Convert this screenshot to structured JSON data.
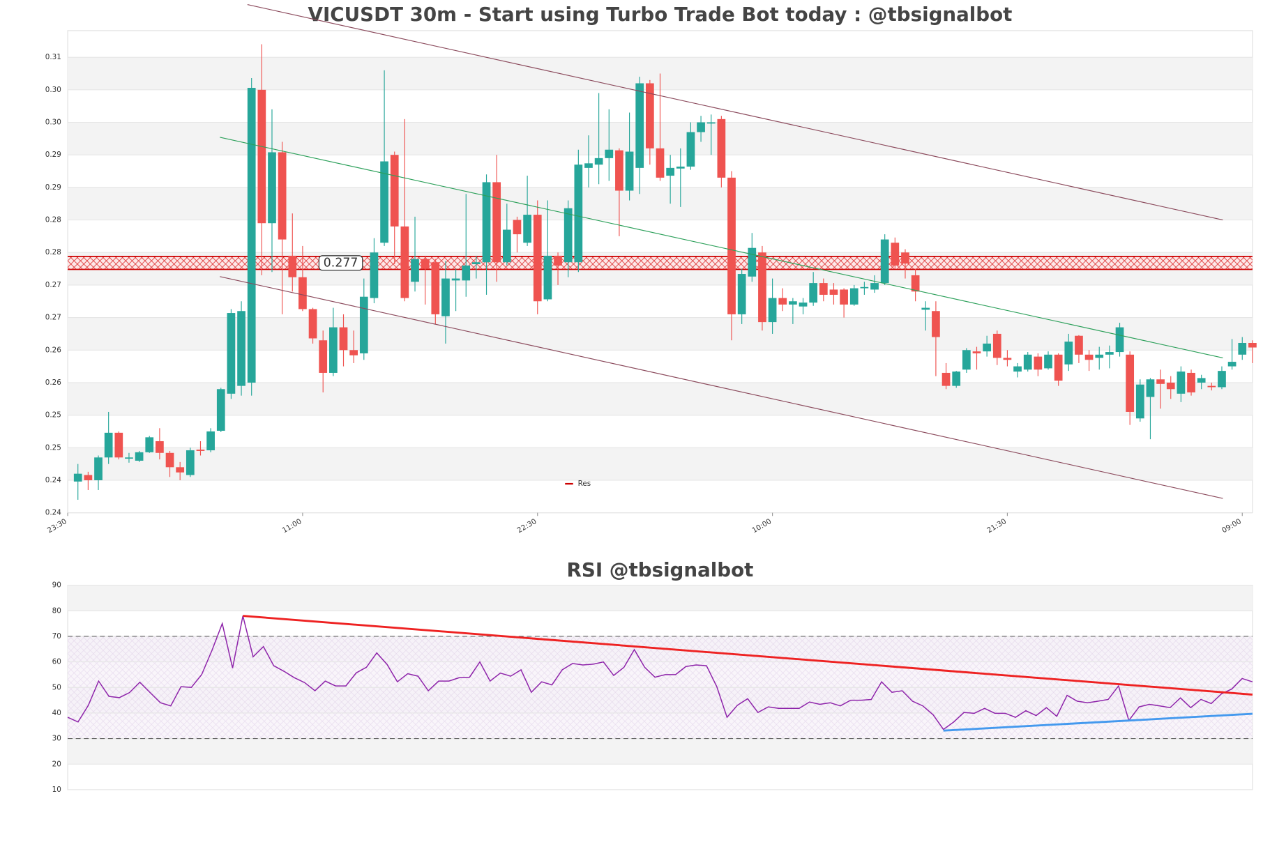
{
  "chart_data": [
    {
      "type": "candlestick",
      "title": "VICUSDT 30m - Start using Turbo Trade Bot today : @tbsignalbot",
      "open": [
        0.2448,
        0.2458,
        0.245,
        0.2485,
        0.2523,
        0.2485,
        0.248,
        0.2493,
        0.251,
        0.2492,
        0.247,
        0.2458,
        0.2497,
        0.2496,
        0.2526,
        0.2583,
        0.2595,
        0.26,
        0.305,
        0.2845,
        0.2954,
        0.2795,
        0.2762,
        0.2713,
        0.2665,
        0.2615,
        0.2685,
        0.265,
        0.2645,
        0.273,
        0.2815,
        0.295,
        0.284,
        0.2755,
        0.279,
        0.2785,
        0.2702,
        0.2757,
        0.2757,
        0.2782,
        0.2785,
        0.2908,
        0.2785,
        0.285,
        0.2815,
        0.2858,
        0.2728,
        0.2795,
        0.2785,
        0.2785,
        0.293,
        0.2935,
        0.2945,
        0.2957,
        0.2895,
        0.293,
        0.306,
        0.296,
        0.2918,
        0.2929,
        0.2932,
        0.2985,
        0.3,
        0.3005,
        0.2915,
        0.2705,
        0.2763,
        0.28,
        0.2693,
        0.273,
        0.272,
        0.2717,
        0.2723,
        0.2753,
        0.2743,
        0.2743,
        0.272,
        0.2745,
        0.2743,
        0.2753,
        0.2815,
        0.28,
        0.2765,
        0.2712,
        0.271,
        0.2615,
        0.2595,
        0.262,
        0.2648,
        0.2648,
        0.2675,
        0.2638,
        0.2617,
        0.262,
        0.264,
        0.2622,
        0.2643,
        0.2628,
        0.2672,
        0.2643,
        0.2638,
        0.2643,
        0.2647,
        0.2643,
        0.2545,
        0.2578,
        0.2605,
        0.26,
        0.2583,
        0.2615,
        0.26,
        0.2595,
        0.2593,
        0.2625,
        0.2643,
        0.2661
      ],
      "high": [
        0.2475,
        0.2463,
        0.2488,
        0.2555,
        0.2525,
        0.2492,
        0.2495,
        0.2518,
        0.253,
        0.2495,
        0.2478,
        0.25,
        0.251,
        0.253,
        0.2592,
        0.2713,
        0.2725,
        0.3068,
        0.312,
        0.302,
        0.297,
        0.286,
        0.281,
        0.2715,
        0.268,
        0.2715,
        0.2705,
        0.268,
        0.276,
        0.2822,
        0.308,
        0.2955,
        0.3005,
        0.2855,
        0.2795,
        0.279,
        0.2787,
        0.2775,
        0.289,
        0.2795,
        0.292,
        0.295,
        0.2875,
        0.2855,
        0.2918,
        0.288,
        0.288,
        0.28,
        0.288,
        0.2958,
        0.298,
        0.3045,
        0.302,
        0.296,
        0.3015,
        0.307,
        0.3065,
        0.3075,
        0.295,
        0.296,
        0.3,
        0.301,
        0.3012,
        0.301,
        0.2925,
        0.2775,
        0.283,
        0.281,
        0.276,
        0.2745,
        0.273,
        0.273,
        0.277,
        0.276,
        0.2753,
        0.2745,
        0.275,
        0.2755,
        0.2765,
        0.2828,
        0.2823,
        0.2805,
        0.2775,
        0.2725,
        0.2725,
        0.263,
        0.2618,
        0.2653,
        0.2655,
        0.2672,
        0.268,
        0.265,
        0.263,
        0.2647,
        0.2645,
        0.2648,
        0.2645,
        0.2675,
        0.2673,
        0.265,
        0.2655,
        0.2657,
        0.2692,
        0.2648,
        0.2605,
        0.2607,
        0.262,
        0.261,
        0.2625,
        0.262,
        0.2612,
        0.26,
        0.2625,
        0.2667,
        0.267,
        0.2665
      ],
      "low": [
        0.242,
        0.2435,
        0.2435,
        0.2475,
        0.2482,
        0.2477,
        0.2478,
        0.2492,
        0.2482,
        0.2455,
        0.245,
        0.2455,
        0.2488,
        0.2493,
        0.2524,
        0.2575,
        0.258,
        0.258,
        0.2765,
        0.277,
        0.2705,
        0.274,
        0.271,
        0.266,
        0.2585,
        0.261,
        0.2625,
        0.263,
        0.2635,
        0.2722,
        0.281,
        0.2782,
        0.2725,
        0.274,
        0.272,
        0.269,
        0.266,
        0.271,
        0.2732,
        0.276,
        0.2735,
        0.2755,
        0.278,
        0.28,
        0.281,
        0.2705,
        0.2725,
        0.275,
        0.2762,
        0.277,
        0.29,
        0.2905,
        0.291,
        0.2825,
        0.288,
        0.289,
        0.2935,
        0.291,
        0.2875,
        0.287,
        0.2927,
        0.297,
        0.295,
        0.29,
        0.2665,
        0.269,
        0.2755,
        0.268,
        0.2675,
        0.271,
        0.269,
        0.2705,
        0.2718,
        0.2725,
        0.272,
        0.27,
        0.2718,
        0.2735,
        0.2738,
        0.275,
        0.2775,
        0.276,
        0.2725,
        0.268,
        0.261,
        0.259,
        0.2592,
        0.2615,
        0.262,
        0.264,
        0.2627,
        0.2625,
        0.2608,
        0.2617,
        0.261,
        0.262,
        0.2595,
        0.2618,
        0.263,
        0.2618,
        0.262,
        0.2622,
        0.264,
        0.2535,
        0.254,
        0.2513,
        0.256,
        0.2575,
        0.257,
        0.258,
        0.259,
        0.2588,
        0.259,
        0.262,
        0.2635,
        0.263
      ],
      "close": [
        0.246,
        0.245,
        0.2485,
        0.2523,
        0.2485,
        0.2485,
        0.2493,
        0.2516,
        0.2492,
        0.247,
        0.2462,
        0.2496,
        0.2495,
        0.2525,
        0.259,
        0.2707,
        0.271,
        0.3053,
        0.2845,
        0.2954,
        0.282,
        0.2762,
        0.2713,
        0.2668,
        0.2615,
        0.2685,
        0.265,
        0.2642,
        0.2732,
        0.28,
        0.294,
        0.284,
        0.273,
        0.279,
        0.2775,
        0.2705,
        0.276,
        0.276,
        0.278,
        0.2785,
        0.2908,
        0.2785,
        0.2835,
        0.2828,
        0.2858,
        0.2725,
        0.2795,
        0.278,
        0.2868,
        0.2935,
        0.2937,
        0.2945,
        0.2958,
        0.2895,
        0.2955,
        0.306,
        0.296,
        0.2915,
        0.293,
        0.2932,
        0.2985,
        0.3,
        0.3,
        0.2915,
        0.2705,
        0.2767,
        0.2807,
        0.2693,
        0.273,
        0.272,
        0.2725,
        0.2723,
        0.2753,
        0.2735,
        0.2735,
        0.272,
        0.2745,
        0.2747,
        0.2753,
        0.282,
        0.278,
        0.2783,
        0.274,
        0.2715,
        0.267,
        0.2595,
        0.2617,
        0.265,
        0.2645,
        0.266,
        0.2638,
        0.2635,
        0.2625,
        0.2643,
        0.262,
        0.2643,
        0.2603,
        0.2663,
        0.2643,
        0.2635,
        0.2643,
        0.2647,
        0.2685,
        0.2555,
        0.2597,
        0.2605,
        0.2598,
        0.259,
        0.2617,
        0.2585,
        0.2607,
        0.2593,
        0.2618,
        0.2632,
        0.2661,
        0.2654
      ],
      "up_color": "#26a69a",
      "down_color": "#ef5350",
      "xlim": [
        -1,
        115
      ],
      "xticks": [
        {
          "value": -1,
          "label": "23:30"
        },
        {
          "value": 22,
          "label": "11:00"
        },
        {
          "value": 45,
          "label": "22:30"
        },
        {
          "value": 68,
          "label": "10:00"
        },
        {
          "value": 91,
          "label": "21:30"
        },
        {
          "value": 114,
          "label": "09:00"
        }
      ],
      "ylim": [
        0.24,
        0.3141
      ],
      "yticks": [
        {
          "value": 0.24,
          "label": "0.24"
        },
        {
          "value": 0.245,
          "label": "0.24"
        },
        {
          "value": 0.25,
          "label": "0.25"
        },
        {
          "value": 0.255,
          "label": "0.25"
        },
        {
          "value": 0.26,
          "label": "0.26"
        },
        {
          "value": 0.265,
          "label": "0.26"
        },
        {
          "value": 0.27,
          "label": "0.27"
        },
        {
          "value": 0.275,
          "label": "0.27"
        },
        {
          "value": 0.28,
          "label": "0.28"
        },
        {
          "value": 0.285,
          "label": "0.28"
        },
        {
          "value": 0.29,
          "label": "0.29"
        },
        {
          "value": 0.295,
          "label": "0.29"
        },
        {
          "value": 0.3,
          "label": "0.30"
        },
        {
          "value": 0.305,
          "label": "0.30"
        },
        {
          "value": 0.31,
          "label": "0.31"
        }
      ],
      "grid": true,
      "trendlines": [
        {
          "color": "#8b4a5c",
          "x": [
            16.6,
            112.1
          ],
          "y": [
            0.3181,
            0.285
          ]
        },
        {
          "color": "#8b4a5c",
          "x": [
            13.9,
            112.1
          ],
          "y": [
            0.2763,
            0.2422
          ]
        },
        {
          "color": "#2ca05a",
          "x": [
            13.9,
            112.1
          ],
          "y": [
            0.2977,
            0.2638
          ]
        }
      ],
      "resistance": {
        "name": "Res",
        "color": "#cc0000",
        "band": [
          0.2774,
          0.2794
        ],
        "level": {
          "value": 0.2774,
          "label": "0.277"
        }
      },
      "legend": "lower center"
    },
    {
      "type": "line",
      "title": "RSI @tbsignalbot",
      "values": [
        38.3,
        36.5,
        43,
        52.5,
        46.5,
        46,
        48,
        52,
        48,
        44,
        42.8,
        50.3,
        50,
        55,
        64.5,
        75,
        57.6,
        78,
        62,
        66,
        58.5,
        56.3,
        53.8,
        51.9,
        48.7,
        52.5,
        50.6,
        50.6,
        55.7,
        57.9,
        63.5,
        59,
        52.2,
        55.4,
        54.4,
        48.7,
        52.5,
        52.5,
        53.8,
        54,
        60,
        52.5,
        55.6,
        54.4,
        56.9,
        48.1,
        52.2,
        51,
        56.9,
        59.4,
        58.8,
        59.1,
        60,
        54.7,
        57.9,
        64.8,
        57.9,
        54,
        55,
        55,
        58.2,
        58.8,
        58.5,
        50.3,
        38.3,
        43,
        45.6,
        40.2,
        42.4,
        41.8,
        41.8,
        41.8,
        44.3,
        43.4,
        44,
        42.8,
        45,
        45,
        45.3,
        52.2,
        48.1,
        48.7,
        44.6,
        42.8,
        39.3,
        33.6,
        36.5,
        40.2,
        39.9,
        41.8,
        39.9,
        39.9,
        38.3,
        40.9,
        39,
        42.1,
        38.7,
        46.9,
        44.6,
        44,
        44.6,
        45.3,
        50.6,
        37.1,
        42.4,
        43.4,
        42.8,
        42.1,
        45.9,
        42.1,
        45.3,
        43.7,
        47.5,
        49.4,
        53.5,
        52.2
      ],
      "color": "#8e24aa",
      "xlim": [
        0,
        115
      ],
      "ylim": [
        10,
        90
      ],
      "yticks": [
        10,
        20,
        30,
        40,
        50,
        60,
        70,
        80,
        90
      ],
      "grid": true,
      "hlines": [
        30,
        70
      ],
      "trendlines": [
        {
          "color": "#ee2222",
          "x": [
            17,
            115
          ],
          "y": [
            78,
            47.2
          ]
        },
        {
          "color": "#4499ee",
          "x": [
            85,
            115
          ],
          "y": [
            33.1,
            39.7
          ]
        }
      ]
    }
  ]
}
